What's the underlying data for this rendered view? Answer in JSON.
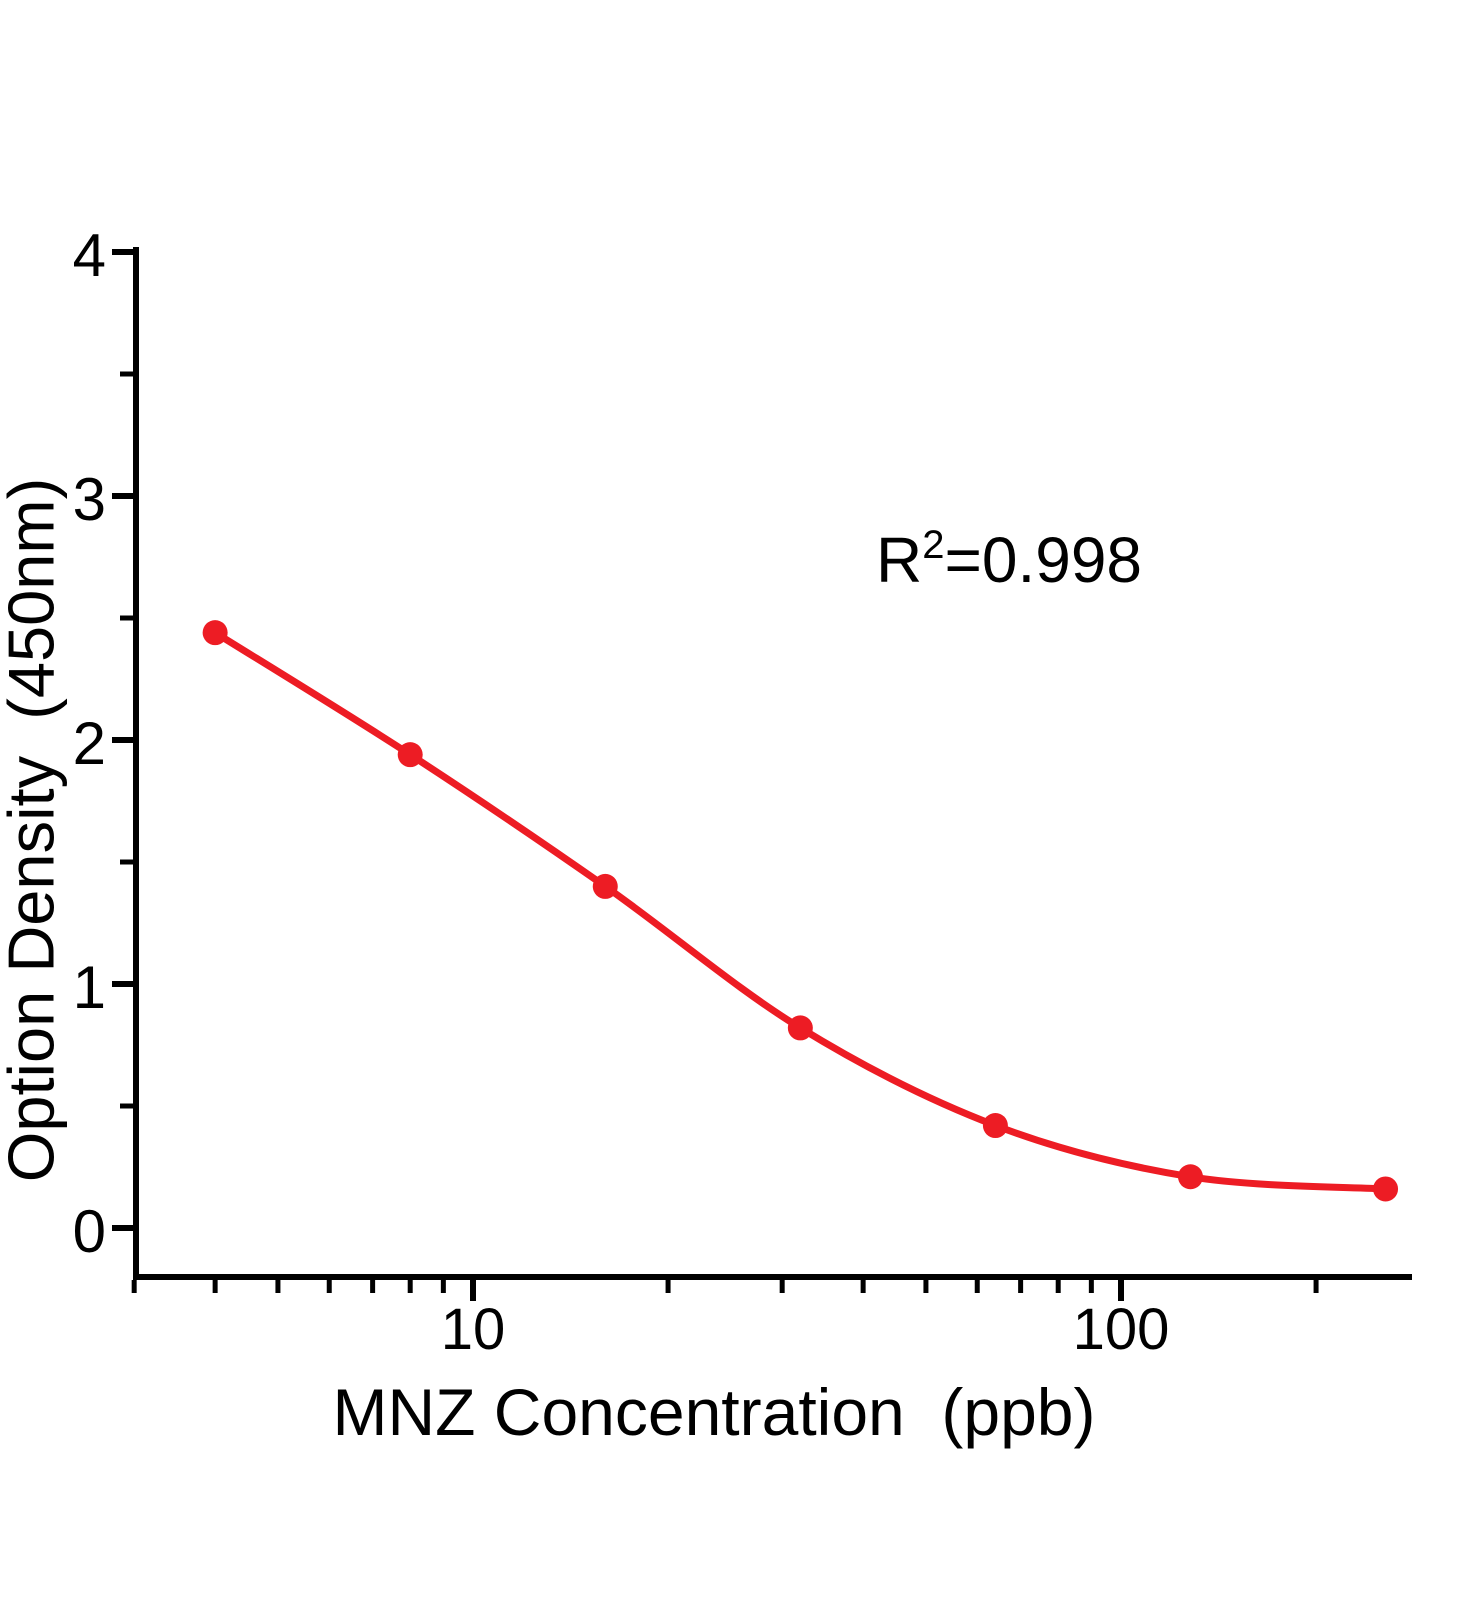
{
  "figure": {
    "background": "#ffffff"
  },
  "chart_data": {
    "type": "scatter",
    "subtype": "standard-curve-with-smooth-fit",
    "title": "",
    "xlabel": "MNZ Concentration  (ppb)",
    "ylabel": "Option Density  (450nm)",
    "x_scale": "log10",
    "y_scale": "linear",
    "xlim": [
      3,
      281
    ],
    "ylim": [
      -0.2,
      4
    ],
    "x": [
      4,
      8,
      16,
      32,
      64,
      128,
      256
    ],
    "y": [
      2.44,
      1.94,
      1.4,
      0.82,
      0.42,
      0.21,
      0.16
    ],
    "x_major_ticks": [
      10,
      100
    ],
    "x_tick_labels": [
      "10",
      "100"
    ],
    "x_minor_ticks": [
      3,
      4,
      5,
      6,
      7,
      8,
      9,
      20,
      30,
      40,
      50,
      60,
      70,
      80,
      90,
      200
    ],
    "y_major_ticks": [
      0,
      1,
      2,
      3,
      4
    ],
    "y_tick_labels": [
      "0",
      "1",
      "2",
      "3",
      "4"
    ],
    "y_minor_ticks": [
      0.5,
      1.5,
      2.5,
      3.5
    ],
    "grid": false,
    "legend": null,
    "annotation": {
      "prefix": "R",
      "sup": "2",
      "suffix": "=0.998"
    },
    "fit": {
      "r_squared": 0.998
    },
    "colors": {
      "curve": "#ED1C24",
      "marker": "#ED1C24",
      "axis": "#000000",
      "text": "#000000"
    }
  }
}
